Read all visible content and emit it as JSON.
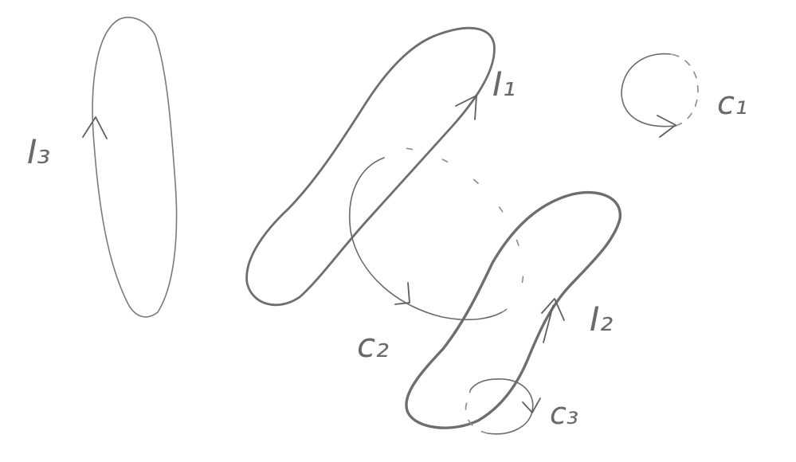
{
  "labels": {
    "I1": "I₁",
    "I2": "I₂",
    "I3": "I₃",
    "C1": "c₁",
    "C2": "c₂",
    "C3": "c₃"
  }
}
